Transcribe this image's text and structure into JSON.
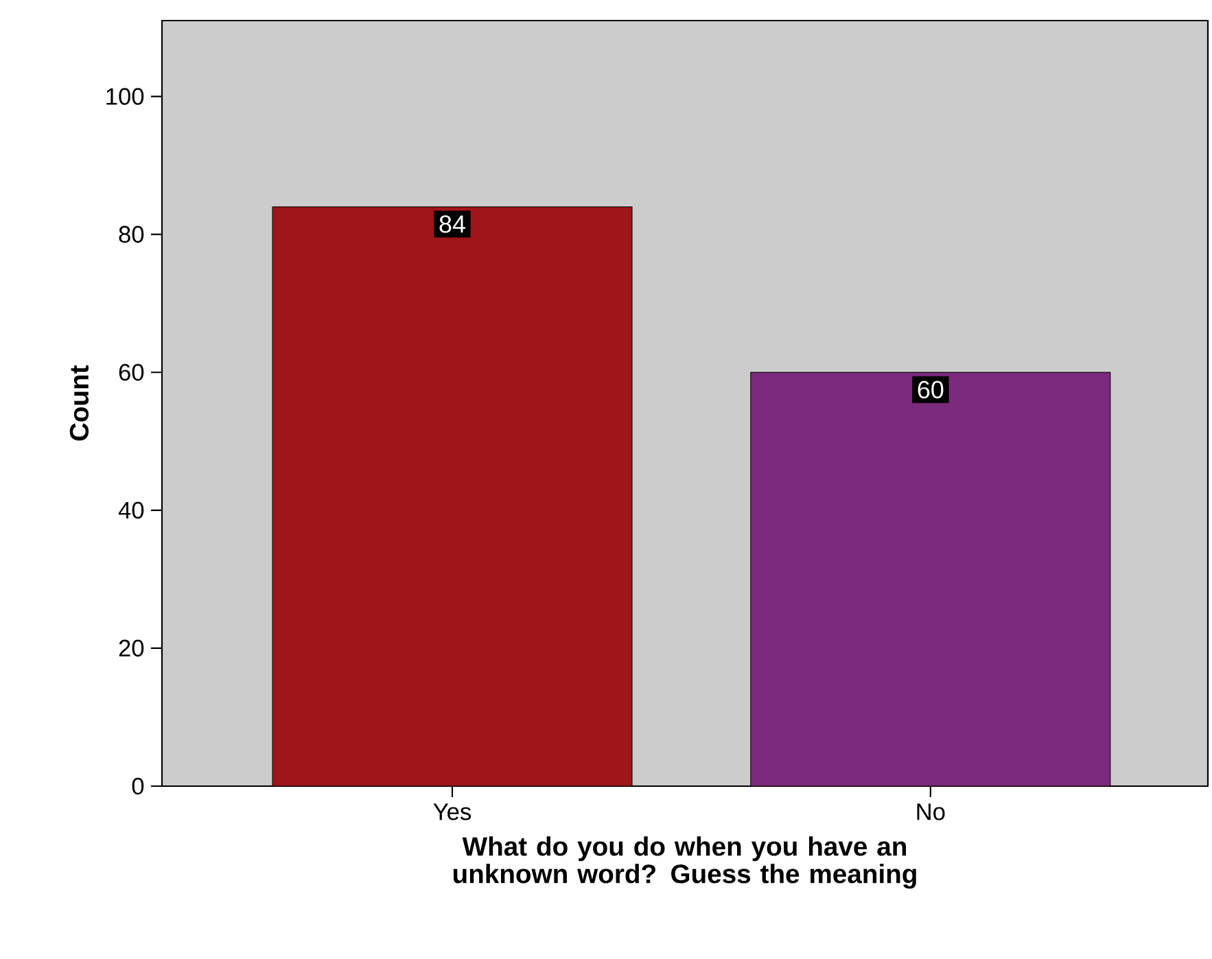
{
  "chart_data": {
    "type": "bar",
    "xlabel": "What do you do when you have an unknown word? Guess the meaning",
    "ylabel": "Count",
    "categories": [
      "Yes",
      "No"
    ],
    "values": [
      84,
      60
    ],
    "colors": [
      "#a0151a",
      "#7b2a7c"
    ],
    "ylim": [
      0,
      111
    ],
    "yticks": [
      0,
      20,
      40,
      60,
      80,
      100
    ],
    "data_labels": true,
    "grid": false
  }
}
